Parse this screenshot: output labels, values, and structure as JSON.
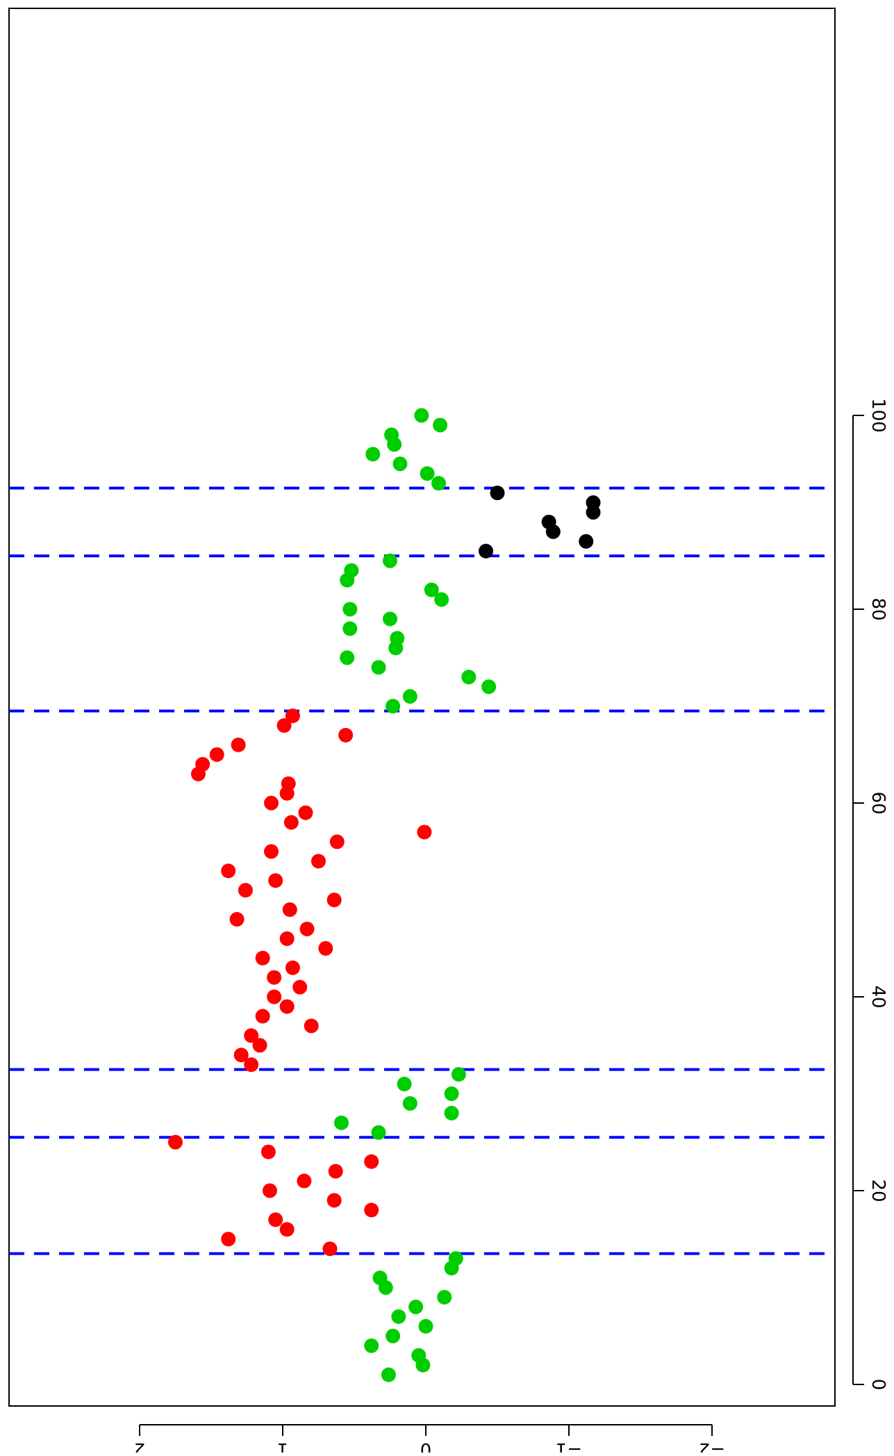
{
  "chart_data": {
    "type": "scatter",
    "orientation": "rotated-90-cw",
    "x_ticks": [
      0,
      20,
      40,
      60,
      80,
      100
    ],
    "x_tick_labels": [
      "0",
      "20",
      "40",
      "60",
      "80",
      "100"
    ],
    "y_ticks": [
      -2,
      -1,
      0,
      1,
      2
    ],
    "y_tick_labels": [
      "−2",
      "−1",
      "0",
      "1",
      "2"
    ],
    "xlim": [
      -3,
      103.5
    ],
    "ylim": [
      -2.1,
      2.15
    ],
    "grid": false,
    "vlines": [
      13.5,
      25.5,
      32.5,
      69.5,
      85.5,
      92.5
    ],
    "colors": {
      "red": "#ff0000",
      "green": "#00cd00",
      "black": "#000000",
      "vline": "#0000ff"
    },
    "series": [
      {
        "color": "green",
        "points": [
          [
            1,
            0.26
          ],
          [
            2,
            0.02
          ],
          [
            3,
            0.05
          ],
          [
            4,
            0.38
          ],
          [
            5,
            0.23
          ],
          [
            6,
            0.0
          ],
          [
            7,
            0.19
          ],
          [
            8,
            0.07
          ],
          [
            9,
            -0.13
          ],
          [
            10,
            0.28
          ],
          [
            11,
            0.32
          ],
          [
            12,
            -0.18
          ],
          [
            13,
            -0.21
          ],
          [
            26,
            0.33
          ],
          [
            27,
            0.59
          ],
          [
            28,
            -0.18
          ],
          [
            29,
            0.11
          ],
          [
            30,
            -0.18
          ],
          [
            31,
            0.15
          ],
          [
            32,
            -0.23
          ],
          [
            70,
            0.23
          ],
          [
            71,
            0.11
          ],
          [
            72,
            -0.44
          ],
          [
            73,
            -0.3
          ],
          [
            74,
            0.33
          ],
          [
            75,
            0.55
          ],
          [
            76,
            0.21
          ],
          [
            77,
            0.2
          ],
          [
            78,
            0.53
          ],
          [
            79,
            0.25
          ],
          [
            80,
            0.53
          ],
          [
            81,
            -0.11
          ],
          [
            82,
            -0.04
          ],
          [
            83,
            0.55
          ],
          [
            84,
            0.52
          ],
          [
            85,
            0.25
          ],
          [
            93,
            -0.09
          ],
          [
            94,
            -0.01
          ],
          [
            95,
            0.18
          ],
          [
            96,
            0.37
          ],
          [
            97,
            0.22
          ],
          [
            98,
            0.24
          ],
          [
            99,
            -0.1
          ],
          [
            100,
            0.03
          ]
        ]
      },
      {
        "color": "red",
        "points": [
          [
            14,
            0.67
          ],
          [
            15,
            1.38
          ],
          [
            16,
            0.97
          ],
          [
            17,
            1.05
          ],
          [
            18,
            0.38
          ],
          [
            19,
            0.64
          ],
          [
            20,
            1.09
          ],
          [
            21,
            0.85
          ],
          [
            22,
            0.63
          ],
          [
            23,
            0.38
          ],
          [
            24,
            1.1
          ],
          [
            25,
            1.75
          ],
          [
            33,
            1.22
          ],
          [
            34,
            1.29
          ],
          [
            35,
            1.16
          ],
          [
            36,
            1.22
          ],
          [
            37,
            0.8
          ],
          [
            38,
            1.14
          ],
          [
            39,
            0.97
          ],
          [
            40,
            1.06
          ],
          [
            41,
            0.88
          ],
          [
            42,
            1.06
          ],
          [
            43,
            0.93
          ],
          [
            44,
            1.14
          ],
          [
            45,
            0.7
          ],
          [
            46,
            0.97
          ],
          [
            47,
            0.83
          ],
          [
            48,
            1.32
          ],
          [
            49,
            0.95
          ],
          [
            50,
            0.64
          ],
          [
            51,
            1.26
          ],
          [
            52,
            1.05
          ],
          [
            53,
            1.38
          ],
          [
            54,
            0.75
          ],
          [
            55,
            1.08
          ],
          [
            56,
            0.62
          ],
          [
            57,
            0.01
          ],
          [
            58,
            0.94
          ],
          [
            59,
            0.84
          ],
          [
            60,
            1.08
          ],
          [
            61,
            0.97
          ],
          [
            62,
            0.96
          ],
          [
            63,
            1.59
          ],
          [
            64,
            1.56
          ],
          [
            65,
            1.46
          ],
          [
            66,
            1.31
          ],
          [
            67,
            0.56
          ],
          [
            68,
            0.99
          ],
          [
            69,
            0.93
          ]
        ]
      },
      {
        "color": "black",
        "points": [
          [
            86,
            -0.42
          ],
          [
            87,
            -1.12
          ],
          [
            88,
            -0.89
          ],
          [
            89,
            -0.86
          ],
          [
            90,
            -1.17
          ],
          [
            91,
            -1.17
          ],
          [
            92,
            -0.5
          ]
        ]
      }
    ]
  }
}
